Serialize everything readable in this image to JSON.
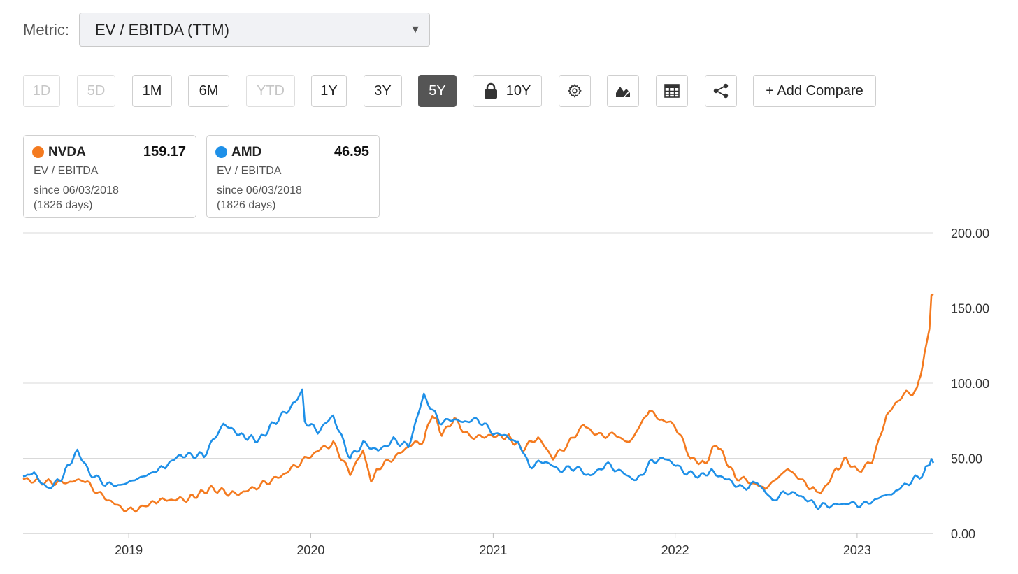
{
  "metric": {
    "label": "Metric:",
    "value": "EV / EBITDA (TTM)"
  },
  "toolbar": {
    "ranges": [
      {
        "label": "1D",
        "state": "disabled"
      },
      {
        "label": "5D",
        "state": "disabled"
      },
      {
        "label": "1M",
        "state": "normal"
      },
      {
        "label": "6M",
        "state": "normal"
      },
      {
        "label": "YTD",
        "state": "disabled"
      },
      {
        "label": "1Y",
        "state": "normal"
      },
      {
        "label": "3Y",
        "state": "normal"
      },
      {
        "label": "5Y",
        "state": "active"
      },
      {
        "label": "10Y",
        "state": "locked"
      }
    ],
    "icons": [
      "gear-icon",
      "chart-type-icon",
      "table-icon",
      "share-icon"
    ],
    "add_compare": "+ Add Compare"
  },
  "legend": [
    {
      "ticker": "NVDA",
      "value": "159.17",
      "metric": "EV / EBITDA",
      "since": "since 06/03/2018",
      "days": "(1826 days)",
      "color": "#f47a1f"
    },
    {
      "ticker": "AMD",
      "value": "46.95",
      "metric": "EV / EBITDA",
      "since": "since 06/03/2018",
      "days": "(1826 days)",
      "color": "#1e90e8"
    }
  ],
  "chart_data": {
    "type": "line",
    "x_range": [
      "2018-06-03",
      "2023-06-03"
    ],
    "xticks": [
      "2019",
      "2020",
      "2021",
      "2022",
      "2023"
    ],
    "yticks": [
      "0.00",
      "50.00",
      "100.00",
      "150.00",
      "200.00"
    ],
    "ylim": [
      0,
      200
    ],
    "y_axis_side": "right",
    "grid": "horizontal",
    "series": [
      {
        "name": "NVDA",
        "color": "#f47a1f",
        "points": [
          [
            "2018-06-03",
            36
          ],
          [
            "2018-07-15",
            34
          ],
          [
            "2018-09-01",
            34
          ],
          [
            "2018-10-01",
            36
          ],
          [
            "2018-11-01",
            27
          ],
          [
            "2018-12-01",
            20
          ],
          [
            "2019-01-01",
            15
          ],
          [
            "2019-02-01",
            18
          ],
          [
            "2019-03-01",
            22
          ],
          [
            "2019-05-01",
            23
          ],
          [
            "2019-06-15",
            30
          ],
          [
            "2019-08-01",
            26
          ],
          [
            "2019-09-01",
            29
          ],
          [
            "2019-11-01",
            38
          ],
          [
            "2019-12-15",
            48
          ],
          [
            "2020-01-15",
            55
          ],
          [
            "2020-02-15",
            60
          ],
          [
            "2020-03-20",
            40
          ],
          [
            "2020-04-15",
            55
          ],
          [
            "2020-05-01",
            35
          ],
          [
            "2020-05-20",
            45
          ],
          [
            "2020-06-15",
            50
          ],
          [
            "2020-07-15",
            58
          ],
          [
            "2020-08-15",
            62
          ],
          [
            "2020-09-01",
            80
          ],
          [
            "2020-09-20",
            66
          ],
          [
            "2020-10-15",
            76
          ],
          [
            "2020-11-15",
            64
          ],
          [
            "2020-12-31",
            65
          ],
          [
            "2021-02-01",
            64
          ],
          [
            "2021-03-01",
            56
          ],
          [
            "2021-04-01",
            64
          ],
          [
            "2021-05-01",
            50
          ],
          [
            "2021-06-01",
            60
          ],
          [
            "2021-07-01",
            72
          ],
          [
            "2021-08-01",
            65
          ],
          [
            "2021-09-01",
            66
          ],
          [
            "2021-10-01",
            60
          ],
          [
            "2021-11-10",
            82
          ],
          [
            "2021-12-01",
            76
          ],
          [
            "2022-01-01",
            72
          ],
          [
            "2022-02-01",
            50
          ],
          [
            "2022-03-01",
            46
          ],
          [
            "2022-03-25",
            60
          ],
          [
            "2022-05-01",
            38
          ],
          [
            "2022-06-01",
            34
          ],
          [
            "2022-07-01",
            30
          ],
          [
            "2022-08-15",
            43
          ],
          [
            "2022-10-01",
            30
          ],
          [
            "2022-10-20",
            27
          ],
          [
            "2022-11-20",
            42
          ],
          [
            "2022-12-10",
            50
          ],
          [
            "2023-01-01",
            41
          ],
          [
            "2023-01-31",
            48
          ],
          [
            "2023-03-01",
            78
          ],
          [
            "2023-04-01",
            92
          ],
          [
            "2023-05-01",
            95
          ],
          [
            "2023-05-20",
            125
          ],
          [
            "2023-05-26",
            135
          ],
          [
            "2023-05-30",
            160
          ],
          [
            "2023-06-03",
            159.17
          ]
        ]
      },
      {
        "name": "AMD",
        "color": "#1e90e8",
        "points": [
          [
            "2018-06-03",
            38
          ],
          [
            "2018-06-25",
            40
          ],
          [
            "2018-07-20",
            30
          ],
          [
            "2018-08-15",
            35
          ],
          [
            "2018-09-20",
            55
          ],
          [
            "2018-10-15",
            40
          ],
          [
            "2018-11-15",
            33
          ],
          [
            "2018-12-15",
            32
          ],
          [
            "2019-02-15",
            40
          ],
          [
            "2019-03-15",
            45
          ],
          [
            "2019-04-15",
            52
          ],
          [
            "2019-06-01",
            52
          ],
          [
            "2019-07-10",
            73
          ],
          [
            "2019-08-15",
            65
          ],
          [
            "2019-09-20",
            62
          ],
          [
            "2019-10-15",
            72
          ],
          [
            "2019-12-01",
            87
          ],
          [
            "2019-12-15",
            95
          ],
          [
            "2019-12-20",
            75
          ],
          [
            "2020-01-15",
            68
          ],
          [
            "2020-02-15",
            78
          ],
          [
            "2020-03-20",
            50
          ],
          [
            "2020-04-15",
            60
          ],
          [
            "2020-05-15",
            55
          ],
          [
            "2020-06-15",
            62
          ],
          [
            "2020-07-15",
            58
          ],
          [
            "2020-08-15",
            92
          ],
          [
            "2020-09-15",
            74
          ],
          [
            "2020-10-15",
            76
          ],
          [
            "2020-11-01",
            74
          ],
          [
            "2020-12-01",
            76
          ],
          [
            "2021-01-01",
            67
          ],
          [
            "2021-02-01",
            64
          ],
          [
            "2021-02-20",
            60
          ],
          [
            "2021-03-15",
            45
          ],
          [
            "2021-04-15",
            48
          ],
          [
            "2021-05-15",
            42
          ],
          [
            "2021-06-15",
            44
          ],
          [
            "2021-07-15",
            38
          ],
          [
            "2021-08-15",
            46
          ],
          [
            "2021-09-15",
            41
          ],
          [
            "2021-10-15",
            35
          ],
          [
            "2021-11-15",
            48
          ],
          [
            "2021-12-15",
            50
          ],
          [
            "2022-01-15",
            42
          ],
          [
            "2022-02-15",
            38
          ],
          [
            "2022-03-15",
            41
          ],
          [
            "2022-04-15",
            36
          ],
          [
            "2022-05-15",
            30
          ],
          [
            "2022-06-15",
            34
          ],
          [
            "2022-07-15",
            22
          ],
          [
            "2022-08-15",
            28
          ],
          [
            "2022-09-15",
            24
          ],
          [
            "2022-10-15",
            18
          ],
          [
            "2022-11-15",
            19
          ],
          [
            "2022-12-15",
            20
          ],
          [
            "2023-01-15",
            19
          ],
          [
            "2023-02-15",
            24
          ],
          [
            "2023-03-15",
            27
          ],
          [
            "2023-04-15",
            34
          ],
          [
            "2023-05-15",
            40
          ],
          [
            "2023-05-30",
            50
          ],
          [
            "2023-06-03",
            46.95
          ]
        ]
      }
    ]
  }
}
